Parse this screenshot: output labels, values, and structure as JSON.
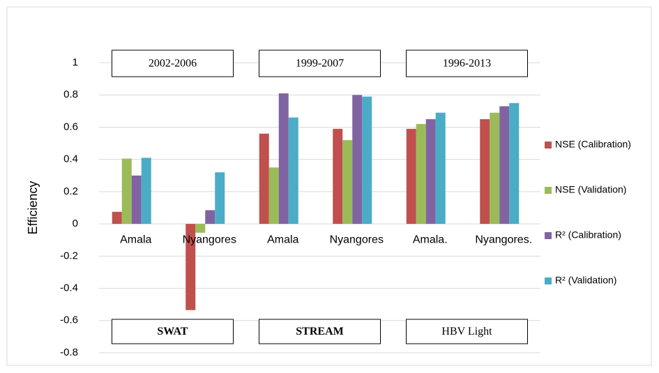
{
  "chart_data": {
    "type": "bar",
    "ylabel": "Efficiency",
    "categories": [
      "Amala",
      "Nyangores",
      "Amala",
      "Nyangores",
      "Amala.",
      "Nyangores."
    ],
    "series": [
      {
        "name": "NSE (Calibration)",
        "color": "#c0504d",
        "values": [
          0.075,
          -0.535,
          0.56,
          0.59,
          0.59,
          0.65
        ]
      },
      {
        "name": "NSE (Validation)",
        "color": "#9bbb59",
        "values": [
          0.405,
          -0.055,
          0.35,
          0.52,
          0.62,
          0.69
        ]
      },
      {
        "name": "R² (Calibration)",
        "color": "#8064a2",
        "values": [
          0.3,
          0.085,
          0.81,
          0.8,
          0.65,
          0.73
        ]
      },
      {
        "name": "R² (Validation)",
        "color": "#4bacc6",
        "values": [
          0.41,
          0.32,
          0.66,
          0.79,
          0.69,
          0.75
        ]
      }
    ],
    "ylim": [
      -0.8,
      1
    ],
    "yticks": [
      1,
      0.8,
      0.6,
      0.4,
      0.2,
      0,
      -0.2,
      -0.4,
      -0.6,
      -0.8
    ],
    "grid": true,
    "legend": "right",
    "annotations": [
      {
        "text": "2002-2006",
        "bold": false
      },
      {
        "text": "1999-2007",
        "bold": false
      },
      {
        "text": "1996-2013",
        "bold": false
      },
      {
        "text": "SWAT",
        "bold": true
      },
      {
        "text": "STREAM",
        "bold": true
      },
      {
        "text": "HBV Light",
        "bold": false
      }
    ]
  }
}
